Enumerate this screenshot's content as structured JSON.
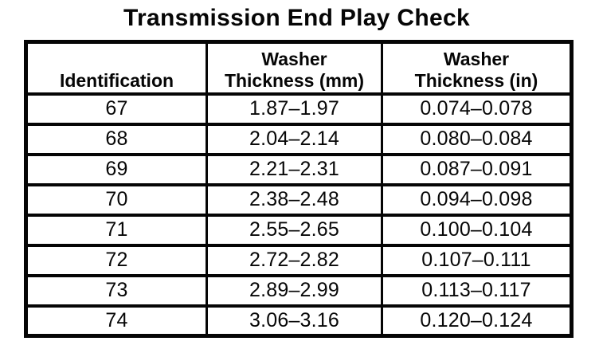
{
  "title": "Transmission End Play Check",
  "colors": {
    "ink": "#000000",
    "paper": "#ffffff"
  },
  "table": {
    "headers": {
      "identification": "Identification",
      "washer_mm": "Washer\nThickness (mm)",
      "washer_in": "Washer\nThickness (in)"
    },
    "rows": [
      {
        "id": "67",
        "mm": "1.87–1.97",
        "in": "0.074–0.078"
      },
      {
        "id": "68",
        "mm": "2.04–2.14",
        "in": "0.080–0.084"
      },
      {
        "id": "69",
        "mm": "2.21–2.31",
        "in": "0.087–0.091"
      },
      {
        "id": "70",
        "mm": "2.38–2.48",
        "in": "0.094–0.098"
      },
      {
        "id": "71",
        "mm": "2.55–2.65",
        "in": "0.100–0.104"
      },
      {
        "id": "72",
        "mm": "2.72–2.82",
        "in": "0.107–0.111"
      },
      {
        "id": "73",
        "mm": "2.89–2.99",
        "in": "0.113–0.117"
      },
      {
        "id": "74",
        "mm": "3.06–3.16",
        "in": "0.120–0.124"
      }
    ]
  },
  "chart_data": {
    "type": "table",
    "title": "Transmission End Play Check",
    "columns": [
      "Identification",
      "Washer Thickness (mm)",
      "Washer Thickness (in)"
    ],
    "rows": [
      [
        "67",
        "1.87–1.97",
        "0.074–0.078"
      ],
      [
        "68",
        "2.04–2.14",
        "0.080–0.084"
      ],
      [
        "69",
        "2.21–2.31",
        "0.087–0.091"
      ],
      [
        "70",
        "2.38–2.48",
        "0.094–0.098"
      ],
      [
        "71",
        "2.55–2.65",
        "0.100–0.104"
      ],
      [
        "72",
        "2.72–2.82",
        "0.107–0.111"
      ],
      [
        "73",
        "2.89–2.99",
        "0.113–0.117"
      ],
      [
        "74",
        "3.06–3.16",
        "0.120–0.124"
      ]
    ]
  }
}
